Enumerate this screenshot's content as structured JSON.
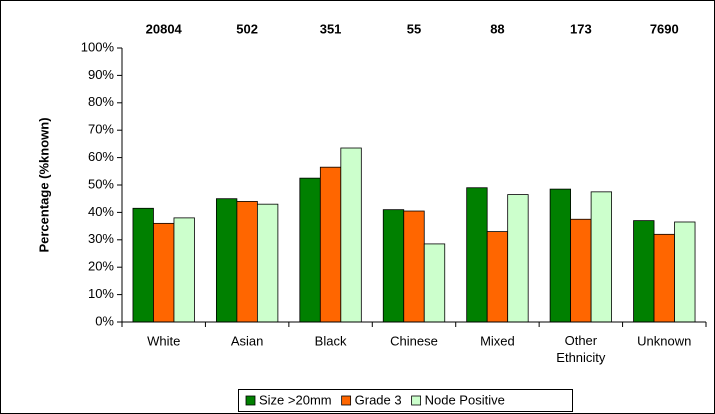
{
  "chart_data": {
    "type": "bar",
    "y_label": "Percentage (%known)",
    "categories": [
      "White",
      "Asian",
      "Black",
      "Chinese",
      "Mixed",
      "Other Ethnicity",
      "Unknown"
    ],
    "annotations": [
      20804,
      502,
      351,
      55,
      88,
      173,
      7690
    ],
    "series": [
      {
        "name": "Size >20mm",
        "color": "#008000",
        "values": [
          41.5,
          45,
          52.5,
          41,
          49,
          48.5,
          37
        ]
      },
      {
        "name": "Grade 3",
        "color": "#ff6600",
        "values": [
          36,
          44,
          56.5,
          40.5,
          33,
          37.5,
          32
        ]
      },
      {
        "name": "Node Positive",
        "color": "#ccffcc",
        "values": [
          38,
          43,
          63.5,
          28.5,
          46.5,
          47.5,
          36.5
        ]
      }
    ],
    "ylim": [
      0,
      100
    ],
    "yticks": [
      {
        "value": 0,
        "label": "0%"
      },
      {
        "value": 10,
        "label": "10%"
      },
      {
        "value": 20,
        "label": "20%"
      },
      {
        "value": 30,
        "label": "30%"
      },
      {
        "value": 40,
        "label": "40%"
      },
      {
        "value": 50,
        "label": "50%"
      },
      {
        "value": 60,
        "label": "60%"
      },
      {
        "value": 70,
        "label": "70%"
      },
      {
        "value": 80,
        "label": "80%"
      },
      {
        "value": 90,
        "label": "90%"
      },
      {
        "value": 100,
        "label": "100%"
      }
    ],
    "legend": "bottom"
  }
}
